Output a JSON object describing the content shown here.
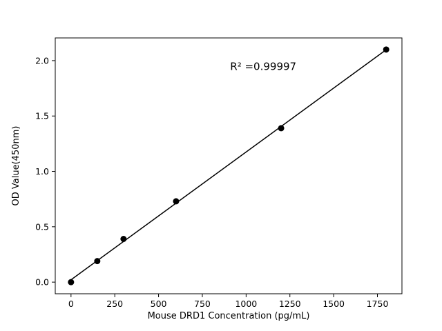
{
  "chart_data": {
    "type": "scatter",
    "title": "",
    "xlabel": "Mouse DRD1 Concentration (pg/mL)",
    "ylabel": "OD Value(450nm)",
    "annotation": "R² =0.99997",
    "annotation_axes_frac": [
      0.6,
      0.125
    ],
    "x": [
      0,
      150,
      300,
      600,
      1200,
      1800
    ],
    "y": [
      0.0,
      0.19,
      0.39,
      0.73,
      1.39,
      2.1
    ],
    "xlim": [
      -90,
      1890
    ],
    "ylim": [
      -0.105,
      2.205
    ],
    "xticks": [
      0,
      250,
      500,
      750,
      1000,
      1250,
      1500,
      1750
    ],
    "yticks": [
      0.0,
      0.5,
      1.0,
      1.5,
      2.0
    ],
    "grid": false,
    "legend": null,
    "fit_line": true,
    "marker_color": "#000000",
    "line_color": "#000000",
    "axis_color": "#000000",
    "background_color": "#ffffff"
  }
}
